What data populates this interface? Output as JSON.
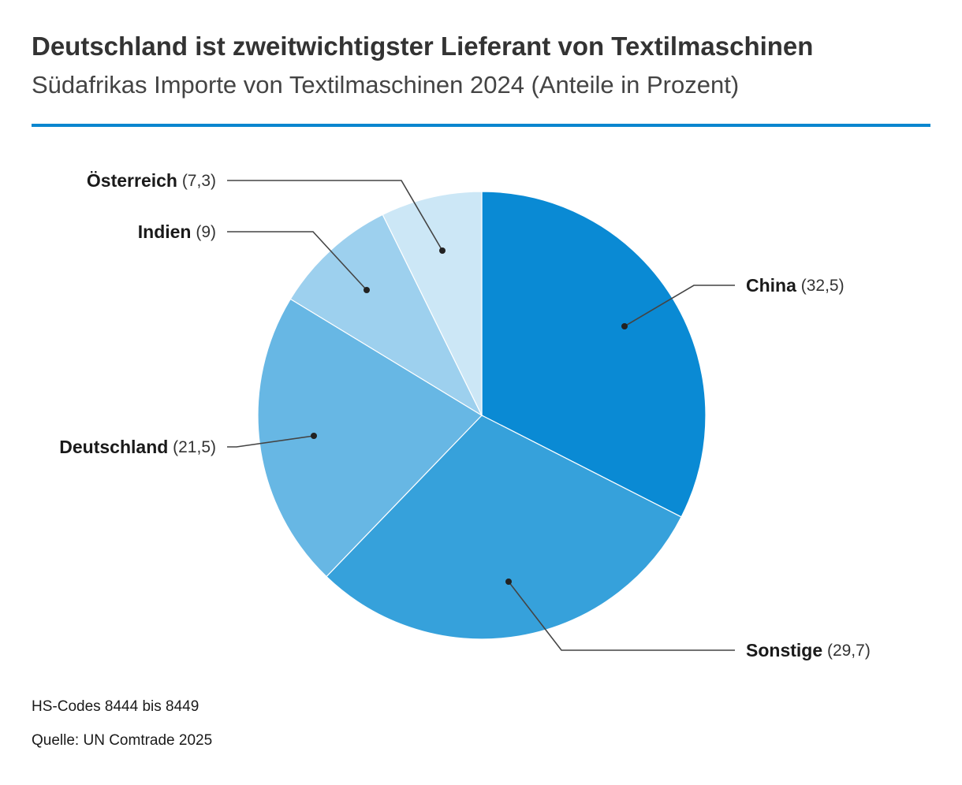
{
  "header": {
    "title": "Deutschland ist zweitwichtigster Lieferant von Textilmaschinen",
    "subtitle": "Südafrikas Importe von Textilmaschinen 2024 (Anteile in Prozent)"
  },
  "chart_data": {
    "type": "pie",
    "title": "Deutschland ist zweitwichtigster Lieferant von Textilmaschinen",
    "subtitle": "Südafrikas Importe von Textilmaschinen 2024 (Anteile in Prozent)",
    "start": "12 o'clock",
    "direction": "clockwise",
    "slices": [
      {
        "label": "China",
        "value": 32.5,
        "display": "(32,5)",
        "color": "#0a8ad4",
        "side": "right"
      },
      {
        "label": "Sonstige",
        "value": 29.7,
        "display": "(29,7)",
        "color": "#36a1db",
        "side": "right"
      },
      {
        "label": "Deutschland",
        "value": 21.5,
        "display": "(21,5)",
        "color": "#67b7e4",
        "side": "left"
      },
      {
        "label": "Indien",
        "value": 9,
        "display": "(9)",
        "color": "#9dd0ee",
        "side": "left"
      },
      {
        "label": "Österreich",
        "value": 7.3,
        "display": "(7,3)",
        "color": "#cce7f6",
        "side": "left"
      }
    ]
  },
  "footer": {
    "note": "HS-Codes 8444 bis 8449",
    "source": "Quelle: UN Comtrade 2025"
  }
}
